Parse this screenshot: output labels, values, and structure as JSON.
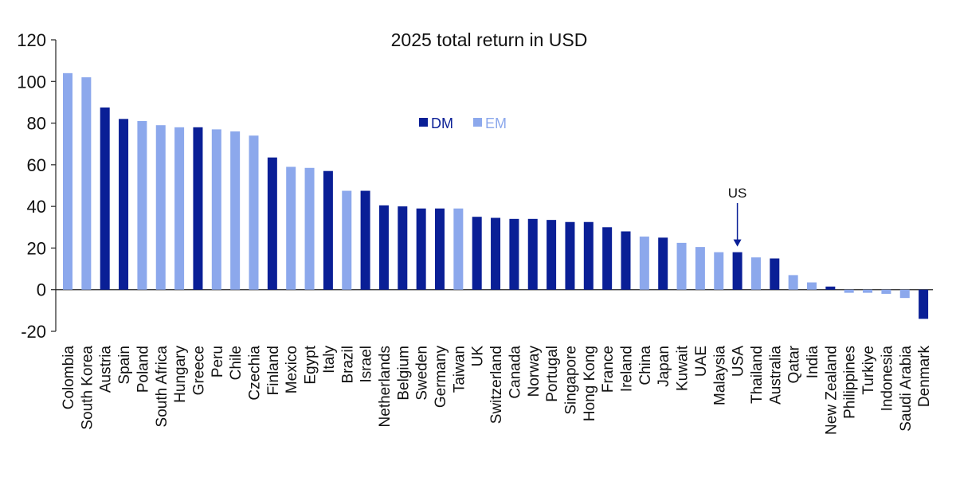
{
  "chart_data": {
    "type": "bar",
    "title": "2025 total return in USD",
    "xlabel": "",
    "ylabel": "",
    "ylim": [
      -20,
      120
    ],
    "yticks": [
      -20,
      0,
      20,
      40,
      60,
      80,
      100,
      120
    ],
    "grid": false,
    "legend": {
      "position": "top-center",
      "entries": [
        {
          "name": "DM",
          "color": "#0a1f96"
        },
        {
          "name": "EM",
          "color": "#8ca8ec"
        }
      ]
    },
    "annotations": [
      {
        "text": "US",
        "target": "USA",
        "arrow": "down"
      }
    ],
    "categories": [
      "Colombia",
      "South Korea",
      "Austria",
      "Spain",
      "Poland",
      "South Africa",
      "Hungary",
      "Greece",
      "Peru",
      "Chile",
      "Czechia",
      "Finland",
      "Mexico",
      "Egypt",
      "Italy",
      "Brazil",
      "Israel",
      "Netherlands",
      "Belgium",
      "Sweden",
      "Germany",
      "Taiwan",
      "UK",
      "Switzerland",
      "Canada",
      "Norway",
      "Portugal",
      "Singapore",
      "Hong Kong",
      "France",
      "Ireland",
      "China",
      "Japan",
      "Kuwait",
      "UAE",
      "Malaysia",
      "USA",
      "Thailand",
      "Australia",
      "Qatar",
      "India",
      "New Zealand",
      "Philippines",
      "Turkiye",
      "Indonesia",
      "Saudi Arabia",
      "Denmark"
    ],
    "values": [
      104,
      102,
      87.5,
      82,
      81,
      79,
      78,
      78,
      77,
      76,
      74,
      63.5,
      59,
      58.5,
      57,
      47.5,
      47.5,
      40.5,
      40,
      39,
      39,
      39,
      35,
      34.5,
      34,
      34,
      33.5,
      32.5,
      32.5,
      30,
      28,
      25.5,
      25,
      22.5,
      20.5,
      18,
      18,
      15.5,
      15,
      7,
      3.5,
      1.5,
      -1.5,
      -1.5,
      -2,
      -4,
      -14
    ],
    "groups": [
      "EM",
      "EM",
      "DM",
      "DM",
      "EM",
      "EM",
      "EM",
      "DM",
      "EM",
      "EM",
      "EM",
      "DM",
      "EM",
      "EM",
      "DM",
      "EM",
      "DM",
      "DM",
      "DM",
      "DM",
      "DM",
      "EM",
      "DM",
      "DM",
      "DM",
      "DM",
      "DM",
      "DM",
      "DM",
      "DM",
      "DM",
      "EM",
      "DM",
      "EM",
      "EM",
      "EM",
      "DM",
      "EM",
      "DM",
      "EM",
      "EM",
      "DM",
      "EM",
      "EM",
      "EM",
      "EM",
      "DM"
    ]
  }
}
